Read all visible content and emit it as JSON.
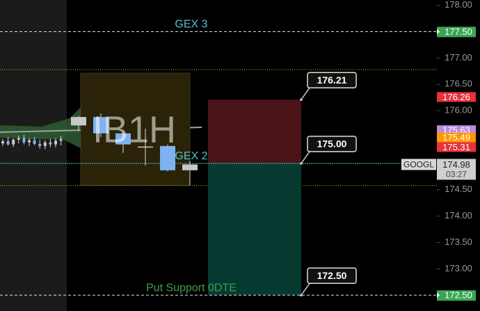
{
  "chart_data": {
    "type": "candlestick",
    "symbol": "GOOGL",
    "ylim": [
      172.2,
      178.1
    ],
    "yticks": [
      {
        "value": 178,
        "label": "178.00"
      },
      {
        "value": 177,
        "label": "177.00"
      },
      {
        "value": 176.5,
        "label": "176.50"
      },
      {
        "value": 176,
        "label": "176.00"
      },
      {
        "value": 174.5,
        "label": "174.50"
      },
      {
        "value": 174,
        "label": "174.00"
      },
      {
        "value": 173.5,
        "label": "173.50"
      },
      {
        "value": 173,
        "label": "173.00"
      }
    ],
    "candles": {
      "open": [
        175.38,
        175.42,
        175.36,
        175.45,
        175.48,
        175.4,
        175.44,
        175.37,
        175.33,
        175.4,
        175.36,
        175.43,
        175.72,
        175.88,
        175.57,
        175.3,
        175.33,
        174.87
      ],
      "high": [
        175.46,
        175.5,
        175.47,
        175.53,
        175.54,
        175.48,
        175.5,
        175.45,
        175.44,
        175.47,
        175.48,
        175.52,
        175.9,
        175.95,
        175.6,
        175.66,
        175.36,
        175.05
      ],
      "low": [
        175.33,
        175.34,
        175.31,
        175.38,
        175.36,
        175.33,
        175.35,
        175.28,
        175.27,
        175.31,
        175.3,
        175.34,
        175.62,
        175.5,
        175.2,
        174.96,
        174.85,
        174.58
      ],
      "close": [
        175.42,
        175.36,
        175.45,
        175.48,
        175.4,
        175.44,
        175.37,
        175.33,
        175.4,
        175.36,
        175.43,
        175.46,
        175.88,
        175.57,
        175.36,
        175.32,
        174.87,
        174.98
      ]
    },
    "up_color": "#c8c8c8",
    "down_color": "#7fb2f0",
    "opening_range": {
      "label": "IB1H",
      "high": 176.78,
      "low": 174.58,
      "color": "#c8b400"
    },
    "levels": [
      {
        "name": "GEX 3",
        "value": 177.5,
        "tag": "177.50",
        "color": "#4fc3d0"
      },
      {
        "name": "GEX 2",
        "value": 175,
        "color": "#4fc3d0"
      },
      {
        "name": "Put Support 0DTE",
        "value": 172.5,
        "tag": "172.50",
        "color": "#3d9c4c"
      }
    ],
    "tag_color": "#3aa655",
    "price_tags": [
      {
        "value": 176.26,
        "label": "176.26",
        "color": "#e8323c"
      },
      {
        "value": 175.63,
        "label": "175.63",
        "color": "#b98be0"
      },
      {
        "value": 175.49,
        "label": "175.49",
        "color": "#ff9800"
      },
      {
        "value": 175.31,
        "label": "175.31",
        "color": "#e8323c"
      }
    ],
    "last_price": {
      "value": 174.98,
      "label": "174.98",
      "countdown": "03:27"
    },
    "trade": {
      "stop": {
        "value": 176.21,
        "label": "176.21"
      },
      "entry": {
        "value": 175,
        "label": "175.00"
      },
      "target": {
        "value": 172.5,
        "label": "172.50"
      }
    }
  }
}
